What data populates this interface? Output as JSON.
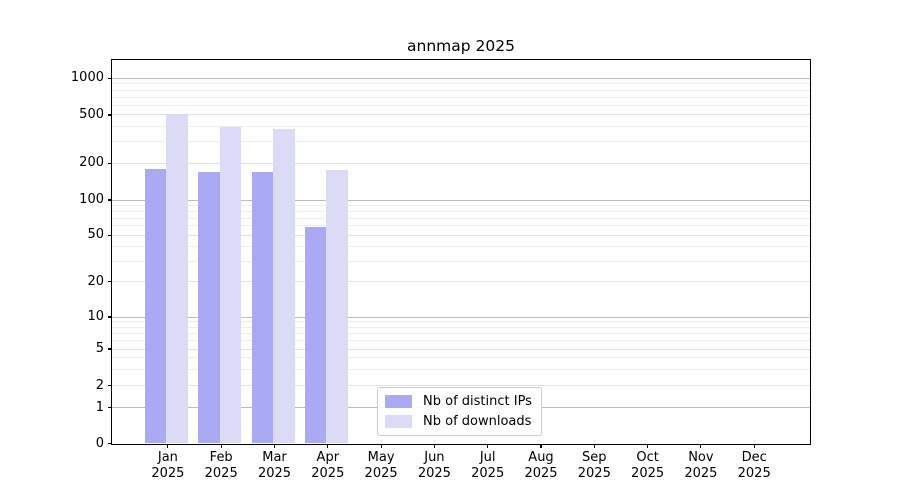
{
  "chart_data": {
    "type": "bar",
    "title": "annmap 2025",
    "months": [
      "Jan",
      "Feb",
      "Mar",
      "Apr",
      "May",
      "Jun",
      "Jul",
      "Aug",
      "Sep",
      "Oct",
      "Nov",
      "Dec"
    ],
    "year_label": "2025",
    "series": [
      {
        "name": "Nb of distinct IPs",
        "color": "#a9a9f4",
        "values": [
          180,
          171,
          169,
          59,
          0,
          0,
          0,
          0,
          0,
          0,
          0,
          0
        ]
      },
      {
        "name": "Nb of downloads",
        "color": "#dbdbf8",
        "values": [
          505,
          400,
          380,
          176,
          0,
          0,
          0,
          0,
          0,
          0,
          0,
          0
        ]
      }
    ],
    "y_ticks": [
      0,
      1,
      2,
      5,
      10,
      20,
      50,
      100,
      200,
      500,
      1000
    ],
    "y_major_ticks": [
      1,
      10,
      100,
      1000
    ],
    "y_scale": "symlog",
    "ylim": [
      0,
      1360
    ],
    "xlabel": "",
    "ylabel": "",
    "grid": "horizontal",
    "legend_position": "lower center-left inside plot",
    "colors": {
      "axis": "#000000",
      "major_grid": "#bdbdbd",
      "labeled_grid": "#e2e2e2",
      "minor_grid": "#ededed"
    }
  }
}
